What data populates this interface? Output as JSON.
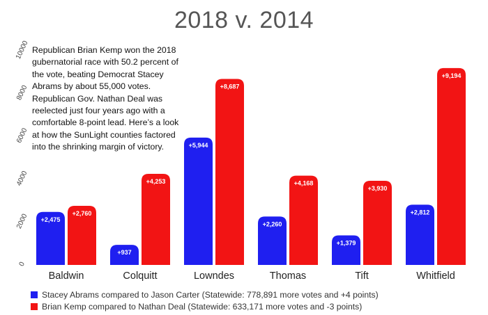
{
  "colors": {
    "abrams": "#1f1ff0",
    "kemp": "#f21414"
  },
  "chart_data": {
    "type": "bar",
    "title": "2018 v. 2014",
    "annotation": "Republican Brian Kemp won the 2018 gubernatorial race with 50.2 percent of the vote, beating Democrat Stacey Abrams by about 55,000 votes. Republican Gov. Nathan Deal was reelected just four years ago with a comfortable 8-point lead. Here’s a look at how the SunLight counties factored into the shrinking margin of victory.",
    "categories": [
      "Baldwin",
      "Colquitt",
      "Lowndes",
      "Thomas",
      "Tift",
      "Whitfield"
    ],
    "ylim": [
      0,
      10000
    ],
    "yticks": [
      "0",
      "2000",
      "4000",
      "6000",
      "8000",
      "10000"
    ],
    "series": [
      {
        "name": "Stacey Abrams compared to Jason Carter (Statewide: 778,891 more votes and +4 points)",
        "values": [
          2475,
          937,
          5944,
          2260,
          1379,
          2812
        ],
        "labels": [
          "+2,475",
          "+937",
          "+5,944",
          "+2,260",
          "+1,379",
          "+2,812"
        ]
      },
      {
        "name": "Brian Kemp compared to Nathan Deal (Statewide: 633,171 more votes and -3 points)",
        "values": [
          2760,
          4253,
          8687,
          4168,
          3930,
          9194
        ],
        "labels": [
          "+2,760",
          "+4,253",
          "+8,687",
          "+4,168",
          "+3,930",
          "+9,194"
        ]
      }
    ],
    "grid": false,
    "legend": "bottom-left"
  }
}
